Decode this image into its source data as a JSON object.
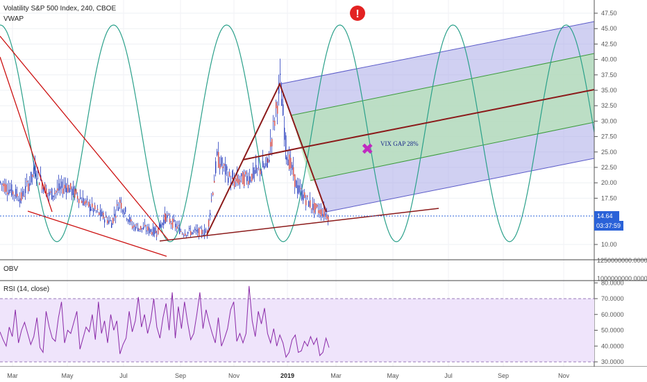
{
  "main_pane": {
    "title": "Volatility S&P 500 Index, 240, CBOE",
    "indicator": "VWAP",
    "price_axis_ticks": [
      "47.50",
      "45.00",
      "42.50",
      "40.00",
      "37.50",
      "35.00",
      "32.50",
      "30.00",
      "27.50",
      "25.00",
      "22.50",
      "20.00",
      "17.50",
      "10.00"
    ],
    "last_price": "14.64",
    "countdown": "03:37:59",
    "annotation": "VIX GAP 28%",
    "alert_symbol": "!",
    "marker_symbol": "✖"
  },
  "obv_pane": {
    "title": "OBV",
    "axis_ticks": [
      "1250000000.0000",
      "1000000000.0000"
    ]
  },
  "rsi_pane": {
    "title": "RSI (14, close)",
    "axis_ticks": [
      "80.0000",
      "70.0000",
      "60.0000",
      "50.0000",
      "40.0000",
      "30.0000"
    ]
  },
  "x_axis": {
    "labels": [
      "Mar",
      "May",
      "Jul",
      "Sep",
      "Nov",
      "2019",
      "Mar",
      "May",
      "Jul",
      "Sep",
      "Nov"
    ]
  },
  "colors": {
    "candles": "#d04848",
    "wicks": "#2a3fbf",
    "trendline": "#cc1111",
    "pitchfork": "#8b1a1a",
    "sine": "#2aa08a",
    "channel_outer": "#6b6bd0",
    "channel_inner": "#a8dba8",
    "rsi_line": "#8a2aa8",
    "rsi_band": "#eee3fb",
    "last_price_bg": "#2a62d8",
    "countdown_bg": "#2a62d8"
  },
  "chart_data": [
    {
      "type": "candlestick",
      "title": "Volatility S&P 500 Index, 240, CBOE",
      "x": [
        "Mar",
        "May",
        "Jul",
        "Sep",
        "Nov",
        "2019",
        "Mar",
        "May",
        "Jul",
        "Sep",
        "Nov"
      ],
      "y_range": [
        10,
        47.5
      ],
      "price_path": [
        {
          "x": "2018-02",
          "y": 20
        },
        {
          "x": "2018-02-20",
          "y": 17.5
        },
        {
          "x": "2018-03-05",
          "y": 22
        },
        {
          "x": "2018-03-20",
          "y": 18
        },
        {
          "x": "2018-04-05",
          "y": 19.5
        },
        {
          "x": "2018-05",
          "y": 16
        },
        {
          "x": "2018-06",
          "y": 13.5
        },
        {
          "x": "2018-06-25",
          "y": 17
        },
        {
          "x": "2018-07",
          "y": 13
        },
        {
          "x": "2018-08",
          "y": 12
        },
        {
          "x": "2018-08-15",
          "y": 14.5
        },
        {
          "x": "2018-09",
          "y": 12
        },
        {
          "x": "2018-09-25",
          "y": 12
        },
        {
          "x": "2018-10-10",
          "y": 24
        },
        {
          "x": "2018-10-25",
          "y": 20
        },
        {
          "x": "2018-11-15",
          "y": 21
        },
        {
          "x": "2018-12-05",
          "y": 23
        },
        {
          "x": "2018-12-24",
          "y": 36
        },
        {
          "x": "2019-01-05",
          "y": 25
        },
        {
          "x": "2019-01-20",
          "y": 19
        },
        {
          "x": "2019-02-10",
          "y": 16
        },
        {
          "x": "2019-02-22",
          "y": 14.64
        }
      ],
      "last": 14.64
    },
    {
      "type": "line",
      "title": "OBV",
      "y_ticks": [
        "1250000000.0000",
        "1000000000.0000"
      ]
    },
    {
      "type": "line",
      "title": "RSI (14, close)",
      "y_range": [
        30,
        80
      ],
      "band": [
        30,
        70
      ],
      "values": [
        49,
        44,
        40,
        52,
        46,
        63,
        42,
        50,
        55,
        48,
        41,
        46,
        58,
        39,
        36,
        62,
        52,
        45,
        43,
        58,
        68,
        42,
        50,
        48,
        55,
        62,
        38,
        45,
        52,
        49,
        60,
        44,
        68,
        48,
        56,
        42,
        60,
        50,
        56,
        35,
        41,
        45,
        62,
        49,
        56,
        71,
        52,
        60,
        48,
        56,
        70,
        52,
        45,
        58,
        67,
        50,
        74,
        45,
        65,
        51,
        68,
        55,
        44,
        48,
        60,
        74,
        51,
        63,
        55,
        48,
        42,
        58,
        40,
        45,
        51,
        63,
        68,
        43,
        48,
        42,
        48,
        78,
        56,
        46,
        62,
        54,
        64,
        48,
        42,
        51,
        40,
        47,
        42,
        33,
        36,
        44,
        47,
        36,
        37,
        43,
        40,
        46,
        41,
        45,
        34,
        36,
        45,
        39
      ]
    }
  ]
}
